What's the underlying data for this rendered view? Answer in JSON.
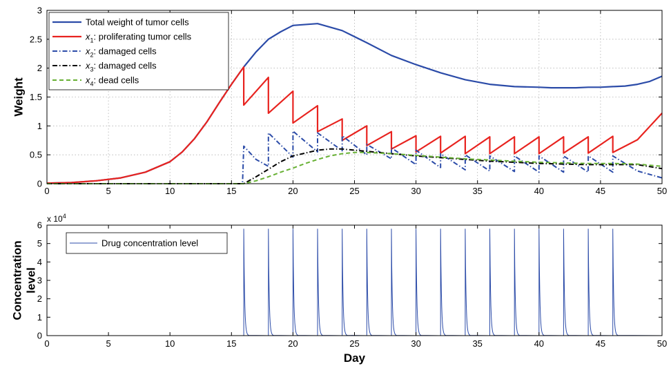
{
  "chart_data": [
    {
      "type": "line",
      "ylabel": "Weight",
      "xlabel": "",
      "xlim": [
        0,
        50
      ],
      "ylim": [
        0,
        3
      ],
      "x_ticks": [
        0,
        5,
        10,
        15,
        20,
        25,
        30,
        35,
        40,
        45,
        50
      ],
      "y_ticks": [
        0,
        0.5,
        1,
        1.5,
        2,
        2.5,
        3
      ],
      "x_tick_labels": [
        "0",
        "5",
        "10",
        "15",
        "20",
        "25",
        "30",
        "35",
        "40",
        "45",
        "50"
      ],
      "y_tick_labels": [
        "0",
        "0.5",
        "1",
        "1.5",
        "2",
        "2.5",
        "3"
      ],
      "grid": true,
      "legend_position": "top-left",
      "series": [
        {
          "name": "Total weight of tumor cells",
          "legend_var": "",
          "legend_sub": "",
          "legend_rest": "Total weight of tumor cells",
          "color": "#2b4ba8",
          "style": "solid",
          "x": [
            0,
            2,
            4,
            6,
            8,
            10,
            11,
            12,
            13,
            14,
            15,
            16,
            17,
            18,
            19,
            20,
            22,
            24,
            26,
            28,
            30,
            32,
            34,
            36,
            38,
            40,
            41,
            42,
            43,
            44,
            45,
            46,
            47,
            48,
            49,
            50
          ],
          "y": [
            0.01,
            0.02,
            0.05,
            0.1,
            0.2,
            0.38,
            0.55,
            0.78,
            1.07,
            1.4,
            1.72,
            2.02,
            2.28,
            2.5,
            2.63,
            2.74,
            2.77,
            2.65,
            2.44,
            2.22,
            2.06,
            1.92,
            1.8,
            1.72,
            1.68,
            1.67,
            1.66,
            1.66,
            1.66,
            1.67,
            1.67,
            1.68,
            1.69,
            1.72,
            1.77,
            1.86
          ]
        },
        {
          "name": "x1: proliferating tumor cells",
          "legend_var": "x",
          "legend_sub": "1",
          "legend_rest": ": proliferating tumor cells",
          "color": "#e8231f",
          "style": "solid",
          "x": [
            0,
            2,
            4,
            6,
            8,
            10,
            11,
            12,
            13,
            14,
            15,
            16,
            16,
            18,
            18,
            20,
            20,
            22,
            22,
            24,
            24,
            26,
            26,
            28,
            28,
            30,
            30,
            32,
            32,
            34,
            34,
            36,
            36,
            38,
            38,
            40,
            40,
            42,
            42,
            44,
            44,
            46,
            46,
            48,
            50
          ],
          "y": [
            0.01,
            0.02,
            0.05,
            0.1,
            0.2,
            0.38,
            0.55,
            0.78,
            1.07,
            1.4,
            1.72,
            2.02,
            1.36,
            1.84,
            1.22,
            1.6,
            1.05,
            1.35,
            0.9,
            1.12,
            0.75,
            1.0,
            0.66,
            0.9,
            0.6,
            0.83,
            0.55,
            0.82,
            0.53,
            0.82,
            0.52,
            0.81,
            0.52,
            0.81,
            0.52,
            0.81,
            0.52,
            0.81,
            0.53,
            0.81,
            0.53,
            0.82,
            0.54,
            0.76,
            1.22
          ]
        },
        {
          "name": "x2: damaged cells",
          "legend_var": "x",
          "legend_sub": "2",
          "legend_rest": ": damaged cells",
          "color": "#2b4ba8",
          "style": "dashdot",
          "x": [
            0,
            15.9,
            16,
            17,
            18,
            18,
            20,
            20,
            22,
            22,
            24,
            24,
            26,
            26,
            28,
            28,
            30,
            30,
            32,
            32,
            34,
            34,
            36,
            36,
            38,
            38,
            40,
            40,
            42,
            42,
            44,
            44,
            46,
            46,
            48,
            50
          ],
          "y": [
            0,
            0,
            0.65,
            0.42,
            0.3,
            0.88,
            0.46,
            0.91,
            0.55,
            0.88,
            0.57,
            0.83,
            0.5,
            0.68,
            0.43,
            0.62,
            0.33,
            0.58,
            0.28,
            0.52,
            0.24,
            0.5,
            0.22,
            0.48,
            0.21,
            0.48,
            0.2,
            0.48,
            0.2,
            0.48,
            0.2,
            0.48,
            0.2,
            0.48,
            0.22,
            0.1
          ]
        },
        {
          "name": "x3: damaged cells",
          "legend_var": "x",
          "legend_sub": "3",
          "legend_rest": ": damaged cells",
          "color": "#000000",
          "style": "dashdot",
          "x": [
            0,
            16,
            17,
            18,
            19,
            20,
            21,
            22,
            23,
            24,
            26,
            28,
            30,
            32,
            34,
            36,
            38,
            40,
            42,
            44,
            46,
            48,
            50
          ],
          "y": [
            0,
            0,
            0.12,
            0.25,
            0.38,
            0.48,
            0.53,
            0.58,
            0.6,
            0.6,
            0.56,
            0.52,
            0.48,
            0.45,
            0.42,
            0.39,
            0.37,
            0.35,
            0.34,
            0.33,
            0.33,
            0.33,
            0.26
          ]
        },
        {
          "name": "x4: dead cells",
          "legend_var": "x",
          "legend_sub": "4",
          "legend_rest": ": dead cells",
          "color": "#66b032",
          "style": "dashed",
          "x": [
            0,
            16,
            17,
            18,
            19,
            20,
            21,
            22,
            23,
            24,
            25,
            26,
            28,
            30,
            32,
            34,
            36,
            38,
            40,
            42,
            44,
            46,
            48,
            50
          ],
          "y": [
            0,
            0,
            0.05,
            0.12,
            0.2,
            0.27,
            0.35,
            0.42,
            0.48,
            0.52,
            0.54,
            0.54,
            0.52,
            0.49,
            0.46,
            0.43,
            0.41,
            0.39,
            0.37,
            0.36,
            0.35,
            0.35,
            0.34,
            0.3
          ]
        }
      ]
    },
    {
      "type": "line",
      "ylabel_lines": [
        "Concentration",
        "level"
      ],
      "xlabel": "Day",
      "xlim": [
        0,
        50
      ],
      "ylim": [
        0,
        60000
      ],
      "x_ticks": [
        0,
        5,
        10,
        15,
        20,
        25,
        30,
        35,
        40,
        45,
        50
      ],
      "y_ticks": [
        0,
        1,
        2,
        3,
        4,
        5,
        6
      ],
      "x_tick_labels": [
        "0",
        "5",
        "10",
        "15",
        "20",
        "25",
        "30",
        "35",
        "40",
        "45",
        "50"
      ],
      "y_tick_labels": [
        "0",
        "1",
        "2",
        "3",
        "4",
        "5",
        "6"
      ],
      "y_multiplier": "x 10",
      "y_multiplier_exp": "4",
      "grid": false,
      "legend_position": "top-left",
      "series": [
        {
          "name": "Drug concentration level",
          "color": "#2b4ba8",
          "style": "solid",
          "spike_days": [
            16,
            18,
            20,
            22,
            24,
            26,
            28,
            30,
            32,
            34,
            36,
            38,
            40,
            42,
            44,
            46
          ],
          "spike_peak": 58000,
          "decay_days": 0.07
        }
      ]
    }
  ]
}
